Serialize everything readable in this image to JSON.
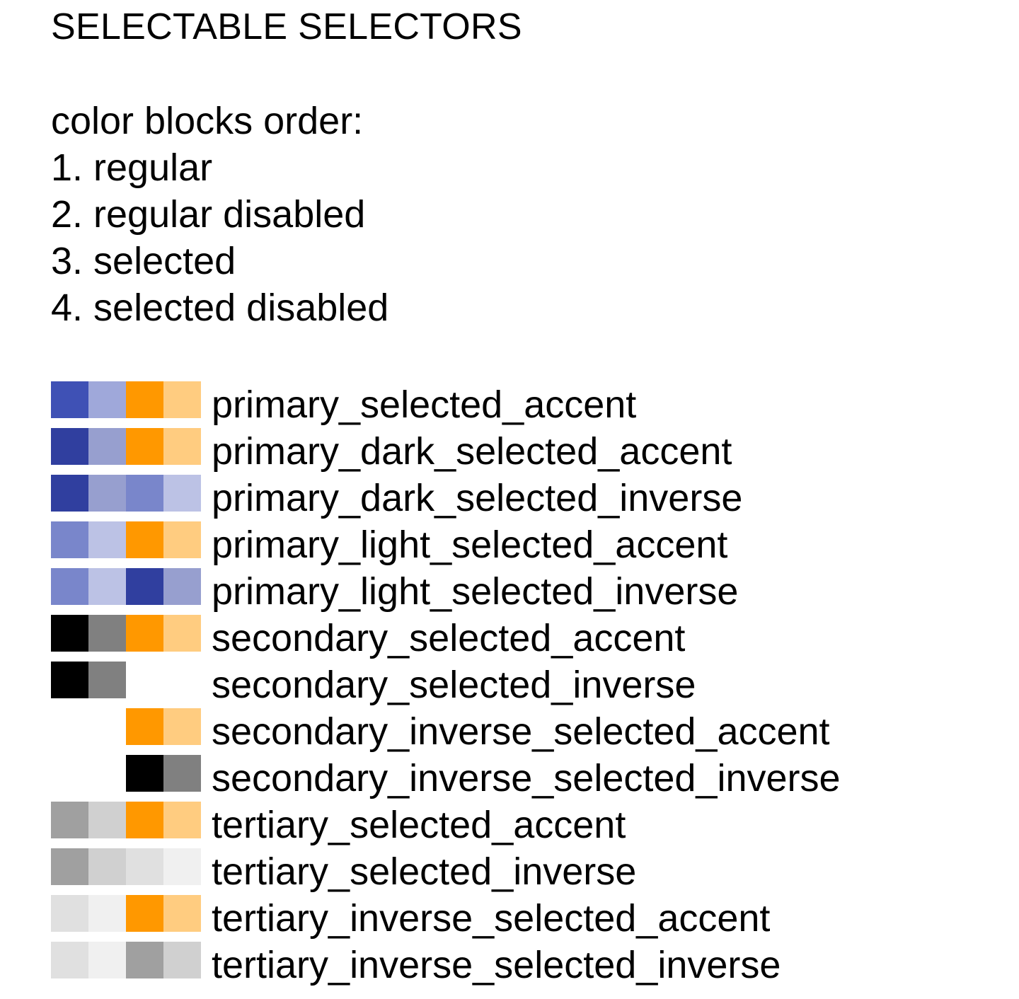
{
  "title": "SELECTABLE SELECTORS",
  "legend": {
    "heading": "color blocks order:",
    "items": [
      "1. regular",
      "2. regular disabled",
      "3. selected",
      "4. selected disabled"
    ]
  },
  "colors": {
    "primary": "#3F51B5",
    "primary_disabled": "#9FA8DA",
    "primary_dark": "#303F9F",
    "primary_dark_disabled": "#979FCF",
    "primary_light": "#7986CB",
    "primary_light_disabled": "#BCC2E5",
    "accent": "#FF9800",
    "accent_disabled": "#FFCC80",
    "black": "#000000",
    "gray": "#808080",
    "tertiary": "#A0A0A0",
    "tertiary_disabled": "#D0D0D0",
    "tertiary_inverse": "#E0E0E0",
    "tertiary_inverse_disabled": "#F0F0F0",
    "transparent": "transparent"
  },
  "rows": [
    {
      "label": "primary_selected_accent",
      "swatches": [
        "#3F51B5",
        "#9FA8DA",
        "#FF9800",
        "#FFCC80"
      ]
    },
    {
      "label": "primary_dark_selected_accent",
      "swatches": [
        "#303F9F",
        "#979FCF",
        "#FF9800",
        "#FFCC80"
      ]
    },
    {
      "label": "primary_dark_selected_inverse",
      "swatches": [
        "#303F9F",
        "#979FCF",
        "#7986CB",
        "#BCC2E5"
      ]
    },
    {
      "label": "primary_light_selected_accent",
      "swatches": [
        "#7986CB",
        "#BCC2E5",
        "#FF9800",
        "#FFCC80"
      ]
    },
    {
      "label": "primary_light_selected_inverse",
      "swatches": [
        "#7986CB",
        "#BCC2E5",
        "#303F9F",
        "#979FCF"
      ]
    },
    {
      "label": "secondary_selected_accent",
      "swatches": [
        "#000000",
        "#808080",
        "#FF9800",
        "#FFCC80"
      ]
    },
    {
      "label": "secondary_selected_inverse",
      "swatches": [
        "#000000",
        "#808080",
        "transparent",
        "transparent"
      ]
    },
    {
      "label": "secondary_inverse_selected_accent",
      "swatches": [
        "transparent",
        "transparent",
        "#FF9800",
        "#FFCC80"
      ]
    },
    {
      "label": "secondary_inverse_selected_inverse",
      "swatches": [
        "transparent",
        "transparent",
        "#000000",
        "#808080"
      ]
    },
    {
      "label": "tertiary_selected_accent",
      "swatches": [
        "#A0A0A0",
        "#D0D0D0",
        "#FF9800",
        "#FFCC80"
      ]
    },
    {
      "label": "tertiary_selected_inverse",
      "swatches": [
        "#A0A0A0",
        "#D0D0D0",
        "#E0E0E0",
        "#F0F0F0"
      ]
    },
    {
      "label": "tertiary_inverse_selected_accent",
      "swatches": [
        "#E0E0E0",
        "#F0F0F0",
        "#FF9800",
        "#FFCC80"
      ]
    },
    {
      "label": "tertiary_inverse_selected_inverse",
      "swatches": [
        "#E0E0E0",
        "#F0F0F0",
        "#A0A0A0",
        "#D0D0D0"
      ]
    }
  ]
}
